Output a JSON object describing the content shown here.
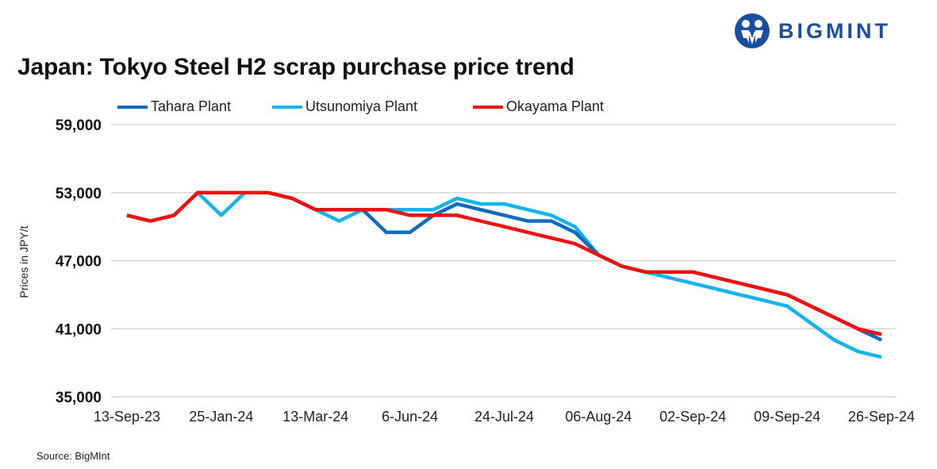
{
  "logo": {
    "text": "BIGMINT",
    "color": "#1a4fa0"
  },
  "source": "Source: BigMInt",
  "chart_data": {
    "type": "line",
    "title": "Japan: Tokyo Steel H2 scrap purchase price trend",
    "xlabel": "",
    "ylabel": "Prices in JPY/t",
    "ylim": [
      35000,
      59000
    ],
    "yticks": [
      35000,
      41000,
      47000,
      53000,
      59000
    ],
    "ytick_labels": [
      "35,000",
      "41,000",
      "47,000",
      "53,000",
      "59,000"
    ],
    "x_tick_labels": [
      "13-Sep-23",
      "25-Jan-24",
      "13-Mar-24",
      "6-Jun-24",
      "24-Jul-24",
      "06-Aug-24",
      "02-Sep-24",
      "09-Sep-24",
      "26-Sep-24"
    ],
    "x_tick_every": 4,
    "grid": "horizontal",
    "legend": "top",
    "series": [
      {
        "name": "Tahara Plant",
        "color": "#0f6cbd",
        "values": [
          51000,
          50500,
          51000,
          53000,
          53000,
          53000,
          53000,
          52500,
          51500,
          51500,
          51500,
          49500,
          49500,
          51000,
          52000,
          51500,
          51000,
          50500,
          50500,
          49500,
          47500,
          46500,
          46000,
          46000,
          46000,
          45500,
          45000,
          44500,
          44000,
          43000,
          42000,
          41000,
          40000
        ]
      },
      {
        "name": "Utsunomiya Plant",
        "color": "#14b4ea",
        "values": [
          51000,
          50500,
          51000,
          53000,
          51000,
          53000,
          53000,
          52500,
          51500,
          50500,
          51500,
          51500,
          51500,
          51500,
          52500,
          52000,
          52000,
          51500,
          51000,
          50000,
          47500,
          46500,
          46000,
          45500,
          45000,
          44500,
          44000,
          43500,
          43000,
          41500,
          40000,
          39000,
          38500
        ]
      },
      {
        "name": "Okayama Plant",
        "color": "#ee1111",
        "values": [
          51000,
          50500,
          51000,
          53000,
          53000,
          53000,
          53000,
          52500,
          51500,
          51500,
          51500,
          51500,
          51000,
          51000,
          51000,
          50500,
          50000,
          49500,
          49000,
          48500,
          47500,
          46500,
          46000,
          46000,
          46000,
          45500,
          45000,
          44500,
          44000,
          43000,
          42000,
          41000,
          40500
        ]
      }
    ]
  }
}
